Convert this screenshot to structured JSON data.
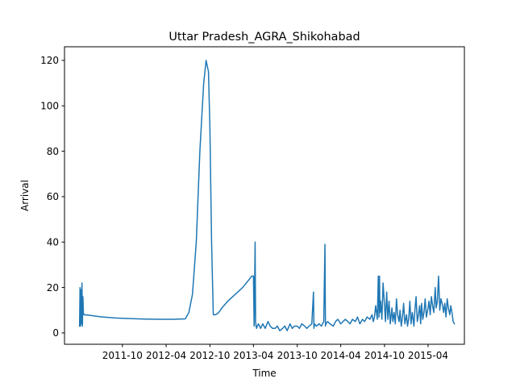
{
  "chart_data": {
    "type": "line",
    "title": "Uttar Pradesh_AGRA_Shikohabad",
    "xlabel": "Time",
    "ylabel": "Arrival",
    "x_type": "date",
    "xlim": [
      "2011-02-01",
      "2015-08-31"
    ],
    "ylim": [
      -5,
      126
    ],
    "x_ticks": [
      {
        "date": "2011-10-01",
        "label": "2011-10"
      },
      {
        "date": "2012-04-01",
        "label": "2012-04"
      },
      {
        "date": "2012-10-01",
        "label": "2012-10"
      },
      {
        "date": "2013-04-01",
        "label": "2013-04"
      },
      {
        "date": "2013-10-01",
        "label": "2013-10"
      },
      {
        "date": "2014-04-01",
        "label": "2014-04"
      },
      {
        "date": "2014-10-01",
        "label": "2014-10"
      },
      {
        "date": "2015-04-01",
        "label": "2015-04"
      }
    ],
    "y_ticks": [
      0,
      20,
      40,
      60,
      80,
      100,
      120
    ],
    "grid": false,
    "legend": "none",
    "series_color": "#1f77b4",
    "x": [
      "2011-04-05",
      "2011-04-07",
      "2011-04-09",
      "2011-04-11",
      "2011-04-13",
      "2011-04-15",
      "2011-04-17",
      "2011-04-19",
      "2011-04-21",
      "2011-04-23",
      "2011-05-15",
      "2011-07-01",
      "2011-09-01",
      "2011-11-01",
      "2012-01-01",
      "2012-03-01",
      "2012-05-01",
      "2012-06-20",
      "2012-07-05",
      "2012-07-20",
      "2012-08-05",
      "2012-08-20",
      "2012-09-05",
      "2012-09-15",
      "2012-09-25",
      "2012-10-01",
      "2012-10-08",
      "2012-10-15",
      "2012-10-25",
      "2012-11-05",
      "2012-11-10",
      "2012-11-20",
      "2012-12-15",
      "2013-01-15",
      "2013-02-15",
      "2013-03-10",
      "2013-03-25",
      "2013-04-01",
      "2013-04-04",
      "2013-04-08",
      "2013-04-10",
      "2013-04-12",
      "2013-04-14",
      "2013-04-17",
      "2013-04-22",
      "2013-05-01",
      "2013-05-10",
      "2013-05-20",
      "2013-06-01",
      "2013-06-10",
      "2013-06-20",
      "2013-07-01",
      "2013-07-10",
      "2013-07-20",
      "2013-08-01",
      "2013-08-10",
      "2013-08-20",
      "2013-09-01",
      "2013-09-10",
      "2013-09-20",
      "2013-10-01",
      "2013-10-10",
      "2013-10-20",
      "2013-11-01",
      "2013-11-10",
      "2013-11-20",
      "2013-12-01",
      "2013-12-08",
      "2013-12-10",
      "2013-12-12",
      "2013-12-20",
      "2014-01-01",
      "2014-01-10",
      "2014-01-20",
      "2014-01-25",
      "2014-01-27",
      "2014-01-29",
      "2014-02-05",
      "2014-02-15",
      "2014-03-01",
      "2014-03-10",
      "2014-03-20",
      "2014-04-01",
      "2014-04-10",
      "2014-04-20",
      "2014-05-01",
      "2014-05-10",
      "2014-05-20",
      "2014-06-01",
      "2014-06-10",
      "2014-06-20",
      "2014-07-01",
      "2014-07-10",
      "2014-07-20",
      "2014-08-01",
      "2014-08-10",
      "2014-08-15",
      "2014-08-20",
      "2014-08-25",
      "2014-09-01",
      "2014-09-05",
      "2014-09-08",
      "2014-09-10",
      "2014-09-12",
      "2014-09-15",
      "2014-09-20",
      "2014-09-25",
      "2014-10-01",
      "2014-10-05",
      "2014-10-10",
      "2014-10-15",
      "2014-10-20",
      "2014-10-25",
      "2014-11-01",
      "2014-11-05",
      "2014-11-10",
      "2014-11-15",
      "2014-11-20",
      "2014-11-25",
      "2014-12-01",
      "2014-12-05",
      "2014-12-10",
      "2014-12-15",
      "2014-12-20",
      "2014-12-25",
      "2015-01-01",
      "2015-01-05",
      "2015-01-10",
      "2015-01-15",
      "2015-01-20",
      "2015-01-25",
      "2015-02-01",
      "2015-02-05",
      "2015-02-10",
      "2015-02-15",
      "2015-02-20",
      "2015-02-25",
      "2015-03-01",
      "2015-03-05",
      "2015-03-10",
      "2015-03-15",
      "2015-03-20",
      "2015-03-25",
      "2015-04-01",
      "2015-04-05",
      "2015-04-10",
      "2015-04-15",
      "2015-04-20",
      "2015-04-25",
      "2015-05-01",
      "2015-05-05",
      "2015-05-10",
      "2015-05-15",
      "2015-05-20",
      "2015-05-25",
      "2015-06-01",
      "2015-06-05",
      "2015-06-10",
      "2015-06-15",
      "2015-06-20",
      "2015-06-25",
      "2015-07-01",
      "2015-07-05",
      "2015-07-10",
      "2015-07-15",
      "2015-07-20"
    ],
    "y": [
      3,
      20,
      3,
      19,
      4,
      22,
      3,
      16,
      9,
      8,
      7.8,
      7.1,
      6.6,
      6.3,
      6.1,
      6.0,
      6.0,
      6.2,
      9,
      17,
      40,
      80,
      110,
      120,
      115,
      90,
      40,
      8,
      8,
      8.8,
      9.5,
      11,
      14,
      17,
      20,
      23,
      25,
      25,
      3,
      40,
      5,
      3,
      2,
      3,
      4,
      2,
      4,
      2,
      5,
      3,
      2,
      2,
      3,
      1,
      2,
      3,
      1,
      4,
      2,
      3,
      3,
      2,
      4,
      3,
      2,
      3,
      4,
      18,
      2,
      4,
      3,
      4,
      3,
      5,
      39,
      3,
      4,
      5,
      4,
      3,
      5,
      6,
      4,
      5,
      6,
      5,
      4,
      6,
      5,
      7,
      4,
      6,
      5,
      7,
      6,
      8,
      5,
      7,
      12,
      6,
      25,
      7,
      25,
      9,
      14,
      6,
      22,
      12,
      5,
      18,
      6,
      14,
      4,
      11,
      5,
      9,
      4,
      15,
      8,
      5,
      10,
      3,
      7,
      13,
      4,
      8,
      3,
      6,
      14,
      4,
      9,
      3,
      10,
      16,
      5,
      8,
      12,
      4,
      13,
      6,
      9,
      15,
      7,
      11,
      14,
      8,
      16,
      12,
      9,
      20,
      11,
      14,
      25,
      10,
      15,
      12,
      9,
      13,
      7,
      15,
      11,
      8,
      12,
      9,
      5,
      4
    ]
  }
}
